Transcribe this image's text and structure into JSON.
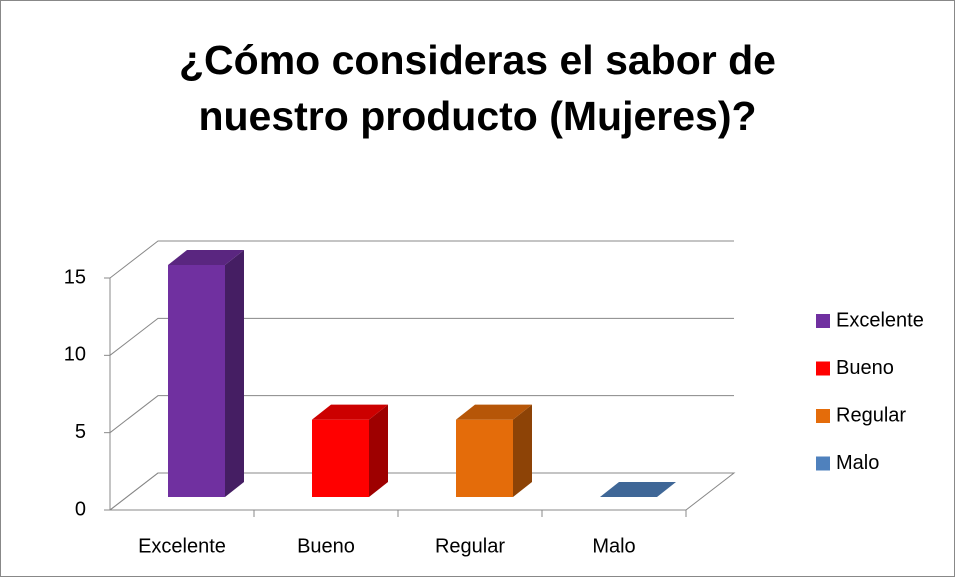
{
  "chart_data": {
    "type": "bar3d",
    "title": "¿Cómo consideras el sabor de nuestro producto (Mujeres)?",
    "categories": [
      "Excelente",
      "Bueno",
      "Regular",
      "Malo"
    ],
    "values": [
      15,
      5,
      5,
      0
    ],
    "colors": [
      "#7030a0",
      "#ff0000",
      "#e46c0a",
      "#4f81bd"
    ],
    "ylim": [
      0,
      15
    ],
    "yticks": [
      0,
      5,
      10,
      15
    ],
    "grid": true,
    "legend": "right"
  }
}
